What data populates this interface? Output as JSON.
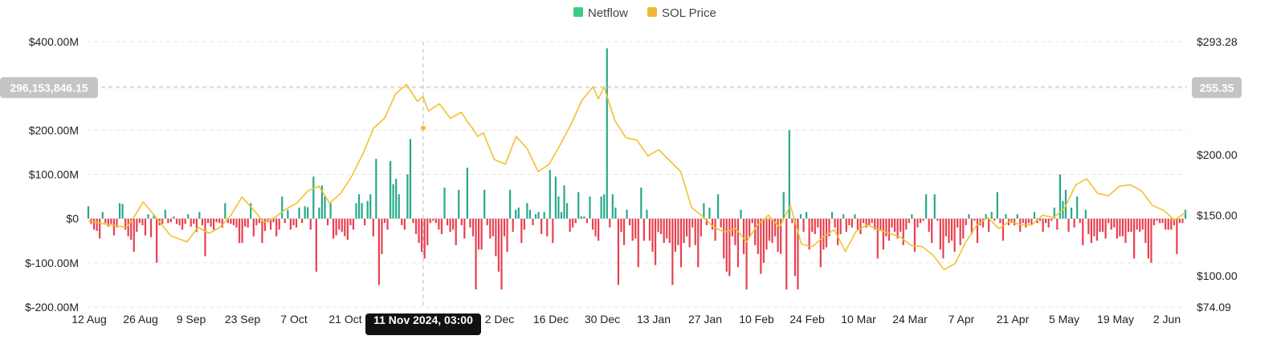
{
  "colors": {
    "netflow_positive": "#26a98a",
    "netflow_negative": "#e8404f",
    "price_line": "#f2c12e",
    "legend_netflow": "#3ecb80",
    "legend_price": "#f0b93a",
    "grid": "#e6e6e6",
    "crosshair": "#bdbdbd"
  },
  "chart_data": {
    "type": "bar",
    "title": "",
    "legend": {
      "position": "top-center",
      "entries": [
        "Netflow",
        "SOL Price"
      ]
    },
    "grid": true,
    "x_tick_labels": [
      "12 Aug",
      "26 Aug",
      "9 Sep",
      "23 Sep",
      "7 Oct",
      "21 Oct",
      "11 Nov 2024, 03:00",
      "2 Dec",
      "16 Dec",
      "30 Dec",
      "13 Jan",
      "27 Jan",
      "10 Feb",
      "24 Feb",
      "10 Mar",
      "24 Mar",
      "7 Apr",
      "21 Apr",
      "5 May",
      "19 May",
      "2 Jun"
    ],
    "y_left": {
      "label": "",
      "range": [
        -200,
        400
      ],
      "ticks": [
        400,
        200,
        100,
        0,
        -100,
        -200
      ],
      "tick_labels": [
        "$400.00M",
        "$200.00M",
        "$100.00M",
        "$0",
        "$-100.00M",
        "$-200.00M"
      ]
    },
    "y_right": {
      "label": "",
      "range": [
        74.09,
        293.28
      ],
      "ticks": [
        293.28,
        200,
        150,
        100,
        74.09
      ],
      "tick_labels": [
        "$293.28",
        "$200.00",
        "$150.00",
        "$100.00",
        "$74.09"
      ]
    },
    "crosshair": {
      "x_label": "11 Nov 2024, 03:00",
      "y_left_label": "296,153,846.15",
      "y_right_label": "255.35",
      "left_value": 296.15,
      "right_value": 255.35
    },
    "series": [
      {
        "name": "Netflow",
        "axis": "left",
        "unit": "$M",
        "values": [
          28,
          -12,
          -25,
          -28,
          -45,
          15,
          -10,
          -18,
          -12,
          -38,
          -20,
          35,
          33,
          -25,
          -40,
          -48,
          -75,
          -30,
          -10,
          -15,
          -38,
          10,
          -42,
          8,
          -100,
          -15,
          -12,
          20,
          -10,
          -8,
          5,
          -12,
          -15,
          -25,
          -12,
          10,
          -18,
          -12,
          -30,
          15,
          -15,
          -85,
          -10,
          -18,
          -25,
          -8,
          -10,
          -20,
          35,
          -10,
          -12,
          -15,
          -20,
          -55,
          -55,
          -18,
          -20,
          35,
          -40,
          -15,
          -10,
          -55,
          -28,
          -8,
          -25,
          -8,
          -40,
          -25,
          50,
          -10,
          20,
          -25,
          -15,
          -20,
          25,
          -10,
          28,
          26,
          -25,
          95,
          -120,
          25,
          75,
          50,
          -15,
          35,
          -45,
          -38,
          -25,
          -30,
          -40,
          -48,
          -15,
          -25,
          35,
          55,
          35,
          -15,
          40,
          55,
          -40,
          135,
          -150,
          -80,
          -10,
          -25,
          130,
          78,
          90,
          55,
          -15,
          -25,
          100,
          180,
          -10,
          -35,
          -55,
          -75,
          -90,
          -60,
          -10,
          -5,
          -10,
          -25,
          -35,
          70,
          -15,
          -30,
          -25,
          -60,
          65,
          -15,
          -45,
          115,
          -20,
          -40,
          -160,
          -70,
          -70,
          65,
          -15,
          -45,
          -40,
          -85,
          -120,
          -160,
          -40,
          -75,
          65,
          -30,
          20,
          25,
          -55,
          -25,
          35,
          20,
          -15,
          10,
          15,
          -35,
          15,
          -40,
          110,
          -55,
          95,
          50,
          15,
          75,
          35,
          -30,
          -20,
          -10,
          60,
          5,
          5,
          -10,
          50,
          -25,
          -40,
          -50,
          50,
          55,
          385,
          -20,
          55,
          25,
          -150,
          -30,
          -60,
          20,
          -15,
          -50,
          -45,
          -110,
          70,
          -50,
          20,
          -50,
          -75,
          -105,
          -30,
          -35,
          -55,
          -45,
          -55,
          -150,
          -75,
          -60,
          -110,
          -55,
          -40,
          -65,
          -20,
          -60,
          -110,
          -40,
          35,
          -15,
          25,
          -25,
          -50,
          55,
          -20,
          -90,
          -120,
          -130,
          -40,
          -60,
          -110,
          20,
          -80,
          -160,
          -40,
          -10,
          -60,
          -80,
          -125,
          -100,
          -70,
          -50,
          -55,
          -40,
          -75,
          -80,
          60,
          -160,
          200,
          -10,
          -130,
          -160,
          10,
          -30,
          15,
          -70,
          -30,
          -35,
          -20,
          -110,
          -70,
          -65,
          -40,
          15,
          -20,
          -60,
          -35,
          10,
          -30,
          -15,
          -20,
          10,
          -25,
          -35,
          -10,
          -20,
          -15,
          -10,
          -25,
          -90,
          -25,
          -70,
          -40,
          -50,
          -20,
          -30,
          -45,
          -30,
          -60,
          -25,
          -10,
          10,
          -75,
          -20,
          -10,
          -5,
          55,
          -30,
          -55,
          55,
          -5,
          -70,
          -90,
          -40,
          -55,
          -50,
          -75,
          -20,
          -60,
          -45,
          -15,
          10,
          -35,
          -5,
          -55,
          -15,
          -20,
          10,
          -30,
          15,
          -5,
          60,
          -10,
          -50,
          10,
          -15,
          -10,
          -15,
          10,
          -30,
          -10,
          -20,
          -10,
          -15,
          15,
          -10,
          -5,
          -30,
          -10,
          -20,
          -5,
          25,
          -25,
          100,
          40,
          65,
          -30,
          25,
          -20,
          50,
          -10,
          -60,
          20,
          -35,
          -55,
          -40,
          -50,
          -30,
          -30,
          -45,
          -10,
          -25,
          -20,
          -45,
          -40,
          -40,
          -55,
          -30,
          -30,
          -90,
          -25,
          -30,
          -25,
          -55,
          -90,
          -100,
          -15,
          -5,
          -10,
          -10,
          -25,
          -25,
          -25,
          -15,
          -80,
          -10,
          -10,
          20
        ]
      },
      {
        "name": "SOL Price",
        "axis": "right",
        "unit": "$",
        "x_frac": [
          0,
          0.02,
          0.035,
          0.04,
          0.05,
          0.06,
          0.075,
          0.09,
          0.1,
          0.11,
          0.12,
          0.13,
          0.14,
          0.15,
          0.16,
          0.17,
          0.18,
          0.19,
          0.2,
          0.21,
          0.22,
          0.23,
          0.24,
          0.25,
          0.26,
          0.27,
          0.28,
          0.29,
          0.3,
          0.305,
          0.31,
          0.32,
          0.33,
          0.34,
          0.345,
          0.35,
          0.355,
          0.36,
          0.37,
          0.38,
          0.39,
          0.4,
          0.41,
          0.42,
          0.43,
          0.44,
          0.45,
          0.46,
          0.465,
          0.47,
          0.48,
          0.49,
          0.5,
          0.51,
          0.52,
          0.53,
          0.54,
          0.55,
          0.56,
          0.57,
          0.58,
          0.59,
          0.6,
          0.61,
          0.62,
          0.63,
          0.64,
          0.65,
          0.66,
          0.67,
          0.68,
          0.69,
          0.7,
          0.71,
          0.72,
          0.73,
          0.74,
          0.75,
          0.76,
          0.77,
          0.78,
          0.79,
          0.8,
          0.81,
          0.82,
          0.83,
          0.84,
          0.85,
          0.86,
          0.87,
          0.88,
          0.89,
          0.9,
          0.91,
          0.92,
          0.93,
          0.94,
          0.95,
          0.96,
          0.97,
          0.98,
          0.99,
          1.0
        ],
        "values": [
          145,
          142,
          140,
          146,
          161,
          150,
          133,
          128,
          140,
          135,
          140,
          150,
          165,
          155,
          144,
          148,
          155,
          160,
          170,
          174,
          160,
          168,
          182,
          200,
          222,
          230,
          250,
          258,
          244,
          248,
          236,
          242,
          230,
          235,
          228,
          222,
          215,
          218,
          196,
          192,
          215,
          205,
          186,
          192,
          208,
          225,
          245,
          256,
          246,
          256,
          228,
          214,
          212,
          199,
          204,
          195,
          186,
          156,
          149,
          140,
          136,
          139,
          128,
          142,
          150,
          140,
          158,
          126,
          124,
          132,
          138,
          120,
          137,
          142,
          138,
          135,
          132,
          125,
          124,
          117,
          105,
          110,
          128,
          142,
          148,
          139,
          145,
          142,
          142,
          150,
          148,
          156,
          175,
          180,
          168,
          166,
          174,
          175,
          170,
          158,
          154,
          146,
          152
        ]
      }
    ]
  }
}
